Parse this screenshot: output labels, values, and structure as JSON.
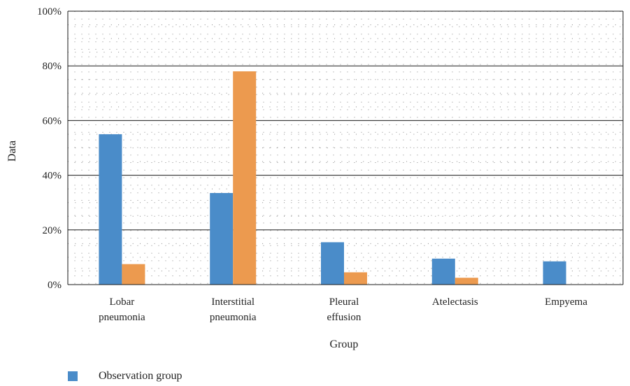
{
  "chart_data": {
    "type": "bar",
    "title": "",
    "xlabel": "Group",
    "ylabel": "Data",
    "ylim": [
      0,
      100
    ],
    "y_ticks": [
      "0%",
      "20%",
      "40%",
      "60%",
      "80%",
      "100%"
    ],
    "grid": "major solid, minor dotted",
    "categories": [
      [
        "Lobar",
        "pneumonia"
      ],
      [
        "Interstitial",
        "pneumonia"
      ],
      [
        "Pleural",
        "effusion"
      ],
      [
        "Atelectasis"
      ],
      [
        "Empyema"
      ]
    ],
    "series": [
      {
        "name": "Observation group",
        "color": "#4a8cc9",
        "values": [
          55,
          33.5,
          15.5,
          9.5,
          8.5
        ]
      },
      {
        "name": "",
        "color": "#ec9a4f",
        "values": [
          7.5,
          78,
          4.5,
          2.5,
          0
        ]
      }
    ],
    "legend_position": "bottom-left"
  }
}
